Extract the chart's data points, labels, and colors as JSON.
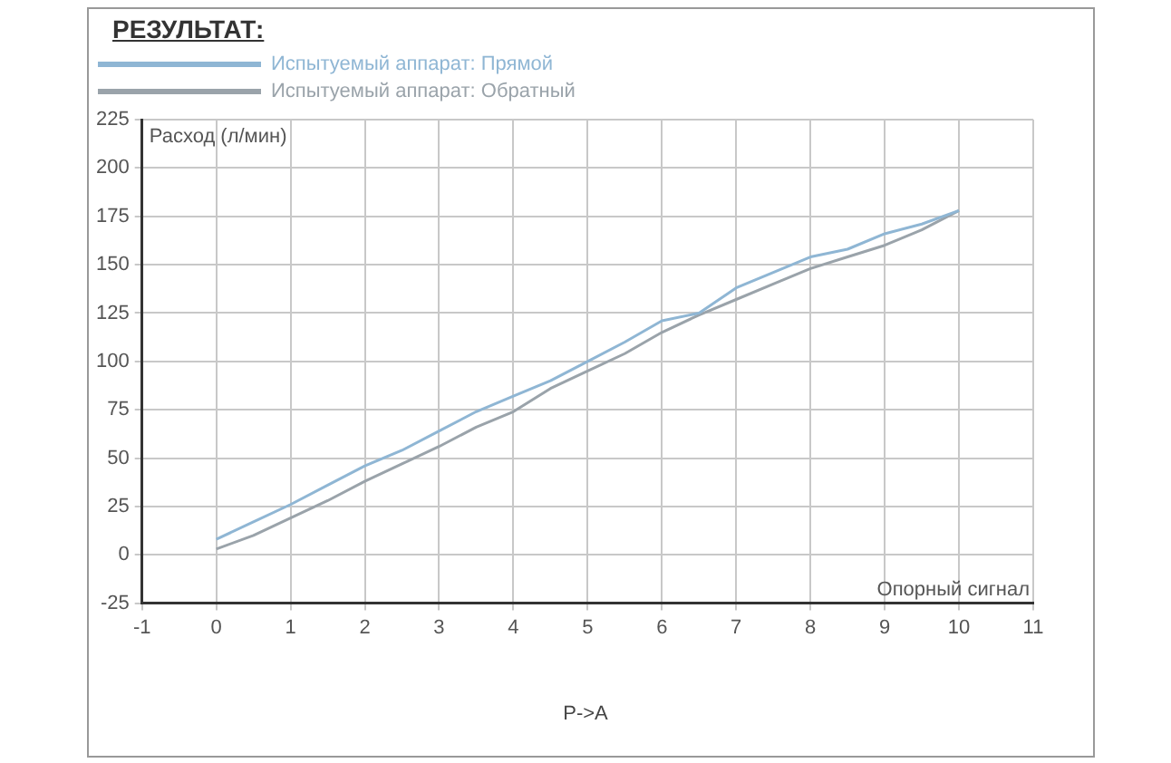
{
  "chart_data": {
    "type": "line",
    "title": "РЕЗУЛЬТАТ:",
    "xlabel": "Опорный сигнал",
    "ylabel": "Расход (л/мин)",
    "annotations": [
      "P->A"
    ],
    "x": [
      0,
      0.5,
      1,
      1.5,
      2,
      2.5,
      3,
      3.5,
      4,
      4.5,
      5,
      5.5,
      6,
      6.5,
      7,
      7.5,
      8,
      8.5,
      9,
      9.5,
      10
    ],
    "series": [
      {
        "name": "Испытуемый аппарат: Прямой",
        "color": "#8fb6d4",
        "values": [
          8,
          17,
          26,
          36,
          46,
          54,
          64,
          74,
          82,
          90,
          100,
          110,
          121,
          125,
          138,
          146,
          154,
          158,
          166,
          171,
          178
        ]
      },
      {
        "name": "Испытуемый аппарат: Обратный",
        "color": "#9aa3aa",
        "values": [
          3,
          10,
          19,
          28,
          38,
          47,
          56,
          66,
          74,
          86,
          95,
          104,
          115,
          124,
          132,
          140,
          148,
          154,
          160,
          168,
          178
        ]
      }
    ],
    "xlim": [
      -1,
      11
    ],
    "xticks": [
      -1,
      0,
      1,
      2,
      3,
      4,
      5,
      6,
      7,
      8,
      9,
      10,
      11
    ],
    "ylim": [
      -25,
      225
    ],
    "yticks": [
      -25,
      0,
      25,
      50,
      75,
      100,
      125,
      150,
      175,
      200,
      225
    ],
    "grid": true,
    "legend": "top left",
    "marker": "none",
    "line_style": "solid"
  }
}
